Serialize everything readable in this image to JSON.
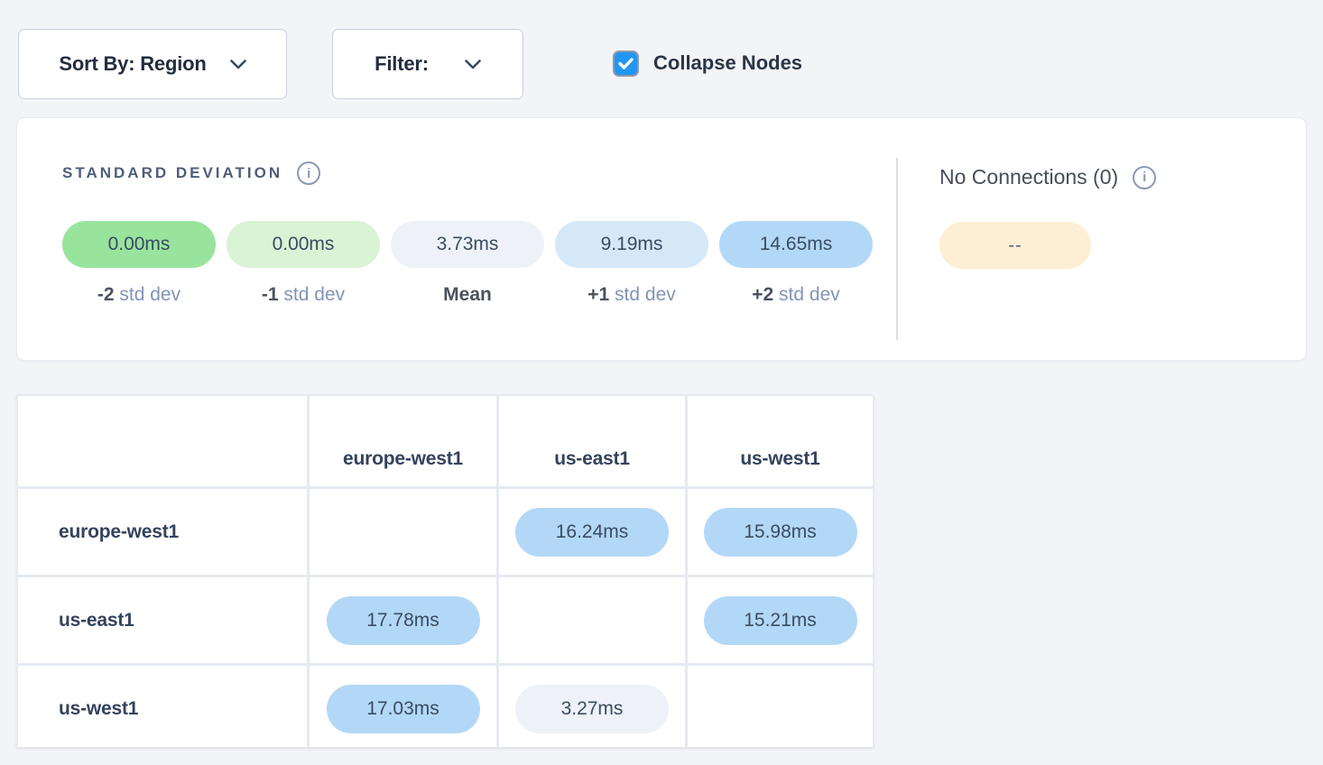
{
  "toolbar": {
    "sort_by_label": "Sort By: Region",
    "filter_label": "Filter:",
    "collapse_nodes_label": "Collapse Nodes",
    "collapse_nodes_checked": true
  },
  "legend": {
    "title": "STANDARD DEVIATION",
    "info_icon": "info-icon",
    "items": [
      {
        "value": "0.00ms",
        "caption_num": "-2",
        "caption_dim": "std dev",
        "type": "neg2"
      },
      {
        "value": "0.00ms",
        "caption_num": "-1",
        "caption_dim": "std dev",
        "type": "neg1"
      },
      {
        "value": "3.73ms",
        "caption_num": "Mean",
        "caption_dim": "",
        "type": "mean"
      },
      {
        "value": "9.19ms",
        "caption_num": "+1",
        "caption_dim": "std dev",
        "type": "pos1"
      },
      {
        "value": "14.65ms",
        "caption_num": "+2",
        "caption_dim": "std dev",
        "type": "pos2"
      }
    ],
    "no_connections": {
      "title": "No Connections (0)",
      "value": "--",
      "type": "none"
    }
  },
  "matrix": {
    "columns": [
      "europe-west1",
      "us-east1",
      "us-west1"
    ],
    "rows": [
      {
        "label": "europe-west1",
        "cells": [
          null,
          {
            "value": "16.24ms",
            "type": "pos2"
          },
          {
            "value": "15.98ms",
            "type": "pos2"
          }
        ]
      },
      {
        "label": "us-east1",
        "cells": [
          {
            "value": "17.78ms",
            "type": "pos2"
          },
          null,
          {
            "value": "15.21ms",
            "type": "pos2"
          }
        ]
      },
      {
        "label": "us-west1",
        "cells": [
          {
            "value": "17.03ms",
            "type": "pos2"
          },
          {
            "value": "3.27ms",
            "type": "mean"
          },
          null
        ]
      }
    ]
  },
  "colors": {
    "neg2": "#99e49d",
    "neg1": "#d9f3d5",
    "mean": "#eef2f8",
    "pos1": "#d5e8f8",
    "pos2": "#b3d8f7",
    "none": "#fdefd4",
    "accent": "#2196f3"
  }
}
